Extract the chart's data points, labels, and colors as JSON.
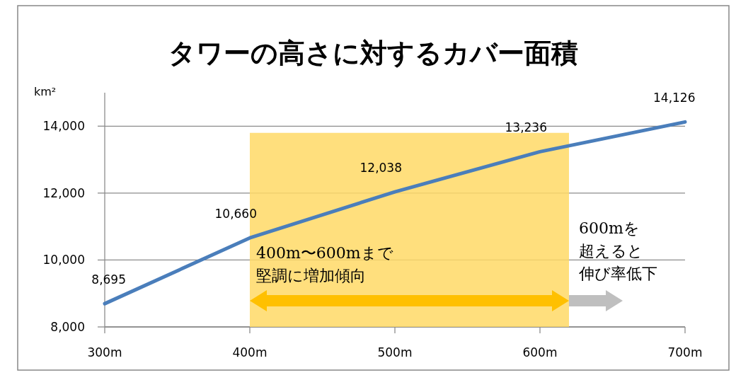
{
  "chart_data": {
    "type": "line",
    "title": "タワーの高さに対するカバー面積",
    "ylabel": "km²",
    "x": [
      300,
      400,
      500,
      600,
      700
    ],
    "series": [
      {
        "color": "#4a7ebb",
        "values": [
          8695,
          10660,
          12038,
          13236,
          14126
        ],
        "value_labels": [
          "8,695",
          "10,660",
          "12,038",
          "13,236",
          "14,126"
        ]
      }
    ],
    "xlim": [
      300,
      700
    ],
    "xticks": [
      {
        "value": 300,
        "label": "300m"
      },
      {
        "value": 400,
        "label": "400m"
      },
      {
        "value": 500,
        "label": "500m"
      },
      {
        "value": 600,
        "label": "600m"
      },
      {
        "value": 700,
        "label": "700m"
      }
    ],
    "ylim": [
      8000,
      15000
    ],
    "yticks": [
      {
        "value": 8000,
        "label": "8,000"
      },
      {
        "value": 10000,
        "label": "10,000"
      },
      {
        "value": 12000,
        "label": "12,000"
      },
      {
        "value": 14000,
        "label": "14,000"
      }
    ],
    "grid": "y",
    "marker": "none",
    "line_style": "solid",
    "bands": [
      {
        "axis": "x",
        "from": 400,
        "to": 620,
        "color": "#ffd966"
      }
    ],
    "annotations": [
      "400m〜600mまで堅調に増加傾向",
      "600mを超えると伸び率低下"
    ]
  }
}
